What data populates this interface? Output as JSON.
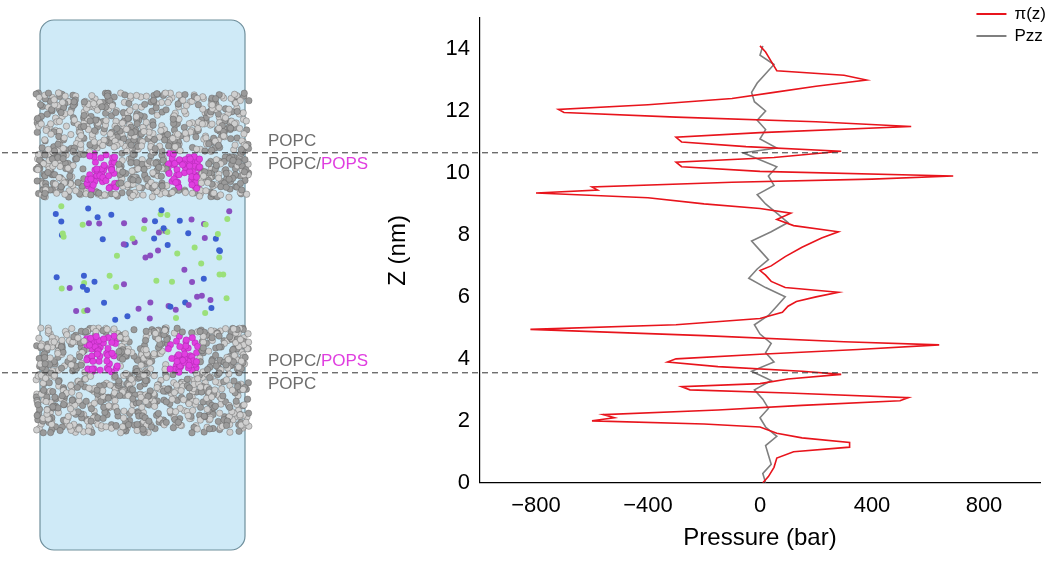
{
  "chart_data": {
    "type": "line",
    "x_label": "Pressure (bar)",
    "y_label": "Z (nm)",
    "xlim": [
      -1000,
      1000
    ],
    "xticks": [
      {
        "value": -800,
        "label": "−800"
      },
      {
        "value": -400,
        "label": "−400"
      },
      0,
      400,
      800
    ],
    "ylim": [
      0,
      15
    ],
    "yticks": [
      0,
      2,
      4,
      6,
      8,
      10,
      12,
      14
    ],
    "grid": false,
    "legend": "upper right",
    "series": [
      {
        "name": "π(z)",
        "color": "#e8141c",
        "x": [
          10,
          30,
          50,
          60,
          120,
          320,
          320,
          150,
          60,
          0,
          -200,
          -600,
          -520,
          -560,
          -150,
          150,
          500,
          530,
          100,
          -250,
          -280,
          0,
          100,
          290,
          150,
          -150,
          -330,
          -300,
          0,
          350,
          640,
          300,
          -200,
          -820,
          -300,
          0,
          80,
          100,
          130,
          200,
          280,
          90,
          40,
          20,
          0,
          40,
          90,
          150,
          220,
          280,
          120,
          60,
          110,
          0,
          -200,
          -400,
          -800,
          -580,
          -600,
          -100,
          400,
          690,
          0,
          -280,
          -300,
          50,
          290,
          -50,
          -280,
          -300,
          0,
          540,
          200,
          -300,
          -700,
          -720,
          -400,
          -100,
          50,
          200,
          380,
          300,
          60,
          40,
          20,
          0
        ],
        "y": [
          0.0,
          0.2,
          0.5,
          0.8,
          1.0,
          1.15,
          1.3,
          1.45,
          1.6,
          1.8,
          1.9,
          2.0,
          2.1,
          2.2,
          2.35,
          2.5,
          2.65,
          2.75,
          2.9,
          3.0,
          3.1,
          3.2,
          3.35,
          3.5,
          3.6,
          3.75,
          3.9,
          4.0,
          4.15,
          4.3,
          4.45,
          4.55,
          4.75,
          4.95,
          5.1,
          5.3,
          5.5,
          5.7,
          5.85,
          6.0,
          6.15,
          6.3,
          6.5,
          6.7,
          6.85,
          7.0,
          7.3,
          7.6,
          7.9,
          8.1,
          8.3,
          8.5,
          8.7,
          8.85,
          9.0,
          9.2,
          9.35,
          9.45,
          9.55,
          9.7,
          9.8,
          9.9,
          10.05,
          10.2,
          10.35,
          10.5,
          10.7,
          10.85,
          11.0,
          11.15,
          11.3,
          11.5,
          11.65,
          11.8,
          11.95,
          12.05,
          12.2,
          12.4,
          12.6,
          12.8,
          13.0,
          13.15,
          13.3,
          13.6,
          13.9,
          14.1
        ]
      },
      {
        "name": "Pzz",
        "color": "#7f7f7f",
        "x": [
          20,
          10,
          40,
          30,
          20,
          60,
          20,
          0,
          30,
          10,
          -20,
          40,
          -30,
          50,
          20,
          40,
          0,
          -20,
          30,
          60,
          90,
          20,
          -40,
          -10,
          30,
          0,
          -30,
          40,
          100,
          60,
          20,
          -10,
          50,
          30,
          60,
          -20,
          -60,
          60,
          0,
          20,
          -10,
          20,
          -20,
          -30,
          -10,
          20,
          50,
          0,
          10
        ],
        "y": [
          0.0,
          0.3,
          0.6,
          0.9,
          1.2,
          1.5,
          1.8,
          2.1,
          2.4,
          2.7,
          3.0,
          3.3,
          3.6,
          3.9,
          4.2,
          4.5,
          4.8,
          5.1,
          5.4,
          5.7,
          6.0,
          6.3,
          6.6,
          6.9,
          7.2,
          7.5,
          7.8,
          8.1,
          8.4,
          8.7,
          9.0,
          9.3,
          9.6,
          9.9,
          10.2,
          10.5,
          10.65,
          10.8,
          11.1,
          11.4,
          11.7,
          12.0,
          12.3,
          12.6,
          12.9,
          13.2,
          13.5,
          13.8,
          14.1
        ]
      }
    ],
    "annotations": [
      {
        "z": 10.65,
        "line_style": "dashed",
        "above": [
          {
            "text": "POPC",
            "color": "#6e6e6e"
          }
        ],
        "below": [
          {
            "text": "POPC/",
            "color": "#6e6e6e"
          },
          {
            "text": "POPS",
            "color": "#e03ee0"
          }
        ]
      },
      {
        "z": 3.55,
        "line_style": "dashed",
        "above": [
          {
            "text": "POPC/",
            "color": "#6e6e6e"
          },
          {
            "text": "POPS",
            "color": "#e03ee0"
          }
        ],
        "below": [
          {
            "text": "POPC",
            "color": "#6e6e6e"
          }
        ]
      }
    ]
  }
}
